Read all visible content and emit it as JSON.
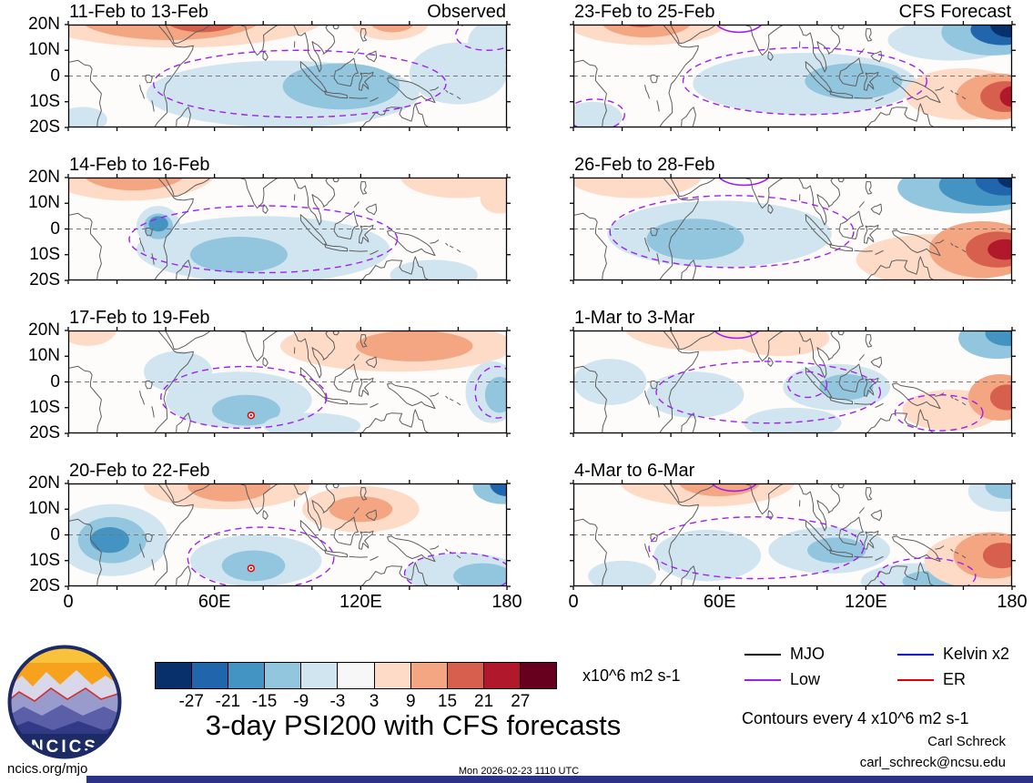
{
  "page": {
    "site": "ncics.org/mjo",
    "timestamp": "Mon 2026-02-23 1110 UTC",
    "credit": "Carl Schreck",
    "email": "carl_schreck@ncsu.edu"
  },
  "footer": {
    "title": "3-day PSI200 with CFS forecasts",
    "units": "x10^6 m2 s-1",
    "contours_note": "Contours every 4 x10^6 m2 s-1",
    "logo_text": "NCICS"
  },
  "legend": {
    "items": [
      {
        "label": "MJO",
        "color": "#000000"
      },
      {
        "label": "Kelvin x2",
        "color": "#0000dd"
      },
      {
        "label": "Low",
        "color": "#a020f0"
      },
      {
        "label": "ER",
        "color": "#e00000"
      }
    ]
  },
  "colorbar": {
    "labels": [
      "-27",
      "-21",
      "-15",
      "-9",
      "-3",
      "3",
      "9",
      "15",
      "21",
      "27"
    ],
    "colors": [
      "#08306b",
      "#2166ac",
      "#4393c3",
      "#92c5de",
      "#d1e5f0",
      "#f7f7f7",
      "#fddbc7",
      "#f4a582",
      "#d6604d",
      "#b2182b",
      "#67001f"
    ]
  },
  "chart_data": {
    "type": "heatmap",
    "title": "3-day PSI200 with CFS forecasts",
    "variable": "PSI200 anomaly (filled contours)",
    "units": "x10^6 m2 s-1",
    "contour_interval": "4 x10^6 m2 s-1",
    "levels": [
      -27,
      -21,
      -15,
      -9,
      -3,
      3,
      9,
      15,
      21,
      27
    ],
    "x_axis": {
      "ticks": [
        "0",
        "60E",
        "120E",
        "180"
      ],
      "tick_lons": [
        0,
        60,
        120,
        180
      ],
      "range_deg": [
        0,
        180
      ]
    },
    "y_axis": {
      "ticks": [
        "20N",
        "10N",
        "0",
        "10S",
        "20S"
      ],
      "range_deg": [
        20,
        -20
      ]
    },
    "columns": [
      {
        "heading": "Observed"
      },
      {
        "heading": "CFS Forecast"
      }
    ],
    "panels": [
      {
        "title": "11-Feb to 13-Feb",
        "corner_label": "Observed",
        "blobs": [
          [
            45,
            24,
            62,
            13,
            6
          ],
          [
            42,
            23,
            38,
            9,
            7
          ],
          [
            55,
            23,
            16,
            6,
            8
          ],
          [
            132,
            21,
            16,
            7,
            6
          ],
          [
            133,
            21,
            9,
            4,
            7
          ],
          [
            176,
            13,
            12,
            9,
            4
          ],
          [
            88,
            -7,
            56,
            13,
            4
          ],
          [
            112,
            -4,
            24,
            9,
            3
          ],
          [
            160,
            1,
            20,
            12,
            4
          ],
          [
            6,
            -17,
            10,
            5,
            4
          ]
        ],
        "low_dashed": [
          [
            95,
            -3,
            60,
            13
          ],
          [
            172,
            16,
            13,
            6
          ]
        ],
        "low_solid": [],
        "markers": []
      },
      {
        "title": "14-Feb to 16-Feb",
        "corner_label": "",
        "blobs": [
          [
            25,
            23,
            36,
            12,
            6
          ],
          [
            27,
            23,
            22,
            8,
            7
          ],
          [
            80,
            -8,
            52,
            13,
            4
          ],
          [
            70,
            -10,
            20,
            7,
            3
          ],
          [
            37,
            1,
            9,
            8,
            4
          ],
          [
            37,
            1,
            6,
            5,
            3
          ],
          [
            37,
            2,
            4,
            3,
            2
          ],
          [
            160,
            21,
            24,
            9,
            6
          ],
          [
            177,
            12,
            8,
            6,
            6
          ],
          [
            150,
            -18,
            18,
            6,
            4
          ]
        ],
        "low_dashed": [
          [
            80,
            -4,
            55,
            13
          ]
        ],
        "low_solid": [],
        "markers": []
      },
      {
        "title": "17-Feb to 19-Feb",
        "corner_label": "",
        "blobs": [
          [
            8,
            21,
            12,
            7,
            6
          ],
          [
            135,
            14,
            48,
            10,
            6
          ],
          [
            142,
            14,
            24,
            6,
            7
          ],
          [
            45,
            4,
            14,
            8,
            4
          ],
          [
            70,
            -7,
            30,
            11,
            4
          ],
          [
            73,
            -11,
            14,
            6,
            3
          ],
          [
            174,
            -4,
            11,
            12,
            4
          ],
          [
            177,
            -5,
            6,
            7,
            3
          ],
          [
            100,
            -17,
            20,
            5,
            4
          ]
        ],
        "low_dashed": [
          [
            72,
            -6,
            34,
            12
          ],
          [
            176,
            -4,
            9,
            10
          ]
        ],
        "low_solid": [],
        "markers": [
          [
            75,
            -13
          ]
        ]
      },
      {
        "title": "20-Feb to 22-Feb",
        "corner_label": "",
        "blobs": [
          [
            65,
            19,
            34,
            9,
            6
          ],
          [
            66,
            19,
            17,
            6,
            7
          ],
          [
            120,
            10,
            24,
            9,
            6
          ],
          [
            120,
            10,
            13,
            5,
            7
          ],
          [
            18,
            -2,
            23,
            14,
            4
          ],
          [
            18,
            -2,
            14,
            9,
            3
          ],
          [
            17,
            -2,
            8,
            5,
            2
          ],
          [
            178,
            19,
            12,
            7,
            3
          ],
          [
            180,
            20,
            7,
            5,
            1
          ],
          [
            77,
            -10,
            27,
            10,
            4
          ],
          [
            76,
            -12,
            13,
            6,
            3
          ],
          [
            162,
            -15,
            24,
            8,
            4
          ],
          [
            170,
            -16,
            12,
            5,
            3
          ]
        ],
        "low_dashed": [
          [
            79,
            -9,
            30,
            12
          ],
          [
            160,
            -15,
            22,
            8
          ]
        ],
        "low_solid": [],
        "markers": [
          [
            75,
            -13
          ]
        ]
      },
      {
        "title": "23-Feb to 25-Feb",
        "corner_label": "CFS Forecast",
        "blobs": [
          [
            30,
            22,
            34,
            10,
            6
          ],
          [
            30,
            22,
            19,
            7,
            7
          ],
          [
            28,
            23,
            10,
            4,
            8
          ],
          [
            155,
            14,
            26,
            8,
            4
          ],
          [
            172,
            17,
            21,
            9,
            3
          ],
          [
            176,
            18,
            13,
            6,
            1
          ],
          [
            179,
            20,
            8,
            5,
            0
          ],
          [
            95,
            -3,
            46,
            12,
            4
          ],
          [
            115,
            -2,
            20,
            7,
            3
          ],
          [
            160,
            -7,
            24,
            10,
            6
          ],
          [
            174,
            -8,
            17,
            9,
            7
          ],
          [
            177,
            -8,
            10,
            6,
            8
          ],
          [
            180,
            -8,
            5,
            4,
            9
          ],
          [
            8,
            -16,
            12,
            6,
            4
          ]
        ],
        "low_dashed": [
          [
            95,
            -2,
            50,
            13
          ],
          [
            9,
            -15,
            12,
            6
          ]
        ],
        "low_solid": [
          [
            68,
            22,
            10,
            5
          ]
        ],
        "markers": []
      },
      {
        "title": "26-Feb to 28-Feb",
        "corner_label": "",
        "blobs": [
          [
            25,
            21,
            28,
            9,
            6
          ],
          [
            60,
            -2,
            46,
            13,
            4
          ],
          [
            50,
            -4,
            20,
            8,
            3
          ],
          [
            163,
            16,
            30,
            10,
            3
          ],
          [
            171,
            17,
            21,
            8,
            2
          ],
          [
            177,
            19,
            12,
            6,
            1
          ],
          [
            180,
            20,
            6,
            4,
            0
          ],
          [
            148,
            -12,
            32,
            10,
            6
          ],
          [
            168,
            -8,
            22,
            11,
            7
          ],
          [
            174,
            -8,
            13,
            7,
            8
          ],
          [
            177,
            -8,
            7,
            4,
            9
          ]
        ],
        "low_dashed": [
          [
            65,
            -1,
            50,
            14
          ]
        ],
        "low_solid": [
          [
            70,
            22,
            11,
            5
          ]
        ],
        "markers": []
      },
      {
        "title": "1-Mar to 3-Mar",
        "corner_label": "",
        "blobs": [
          [
            55,
            21,
            34,
            9,
            6
          ],
          [
            85,
            17,
            20,
            7,
            6
          ],
          [
            15,
            0,
            15,
            9,
            4
          ],
          [
            50,
            -5,
            20,
            9,
            4
          ],
          [
            108,
            -2,
            22,
            9,
            4
          ],
          [
            112,
            -2,
            11,
            5,
            3
          ],
          [
            90,
            -16,
            20,
            6,
            4
          ],
          [
            174,
            17,
            16,
            8,
            3
          ],
          [
            178,
            19,
            9,
            5,
            2
          ],
          [
            155,
            -11,
            20,
            8,
            6
          ],
          [
            175,
            -6,
            13,
            9,
            7
          ],
          [
            178,
            -6,
            7,
            5,
            8
          ]
        ],
        "low_dashed": [
          [
            80,
            -4,
            46,
            12
          ],
          [
            96,
            -1,
            8,
            5
          ],
          [
            150,
            -12,
            18,
            7
          ]
        ],
        "low_solid": [
          [
            67,
            22,
            10,
            5
          ]
        ],
        "markers": []
      },
      {
        "title": "4-Mar to 6-Mar",
        "corner_label": "",
        "blobs": [
          [
            55,
            21,
            36,
            10,
            6
          ],
          [
            60,
            21,
            17,
            6,
            7
          ],
          [
            55,
            -8,
            22,
            10,
            4
          ],
          [
            105,
            -6,
            25,
            9,
            4
          ],
          [
            108,
            -6,
            12,
            5,
            3
          ],
          [
            20,
            -16,
            14,
            6,
            4
          ],
          [
            140,
            -18,
            22,
            7,
            4
          ],
          [
            146,
            -18,
            11,
            4,
            3
          ],
          [
            176,
            17,
            14,
            8,
            4
          ],
          [
            178,
            19,
            9,
            5,
            3
          ],
          [
            168,
            -10,
            24,
            11,
            6
          ],
          [
            172,
            -8,
            16,
            9,
            7
          ],
          [
            176,
            -8,
            8,
            5,
            8
          ]
        ],
        "low_dashed": [
          [
            75,
            -5,
            44,
            12
          ],
          [
            145,
            -16,
            20,
            7
          ]
        ],
        "low_solid": [
          [
            66,
            22,
            10,
            5
          ]
        ],
        "markers": []
      }
    ]
  }
}
